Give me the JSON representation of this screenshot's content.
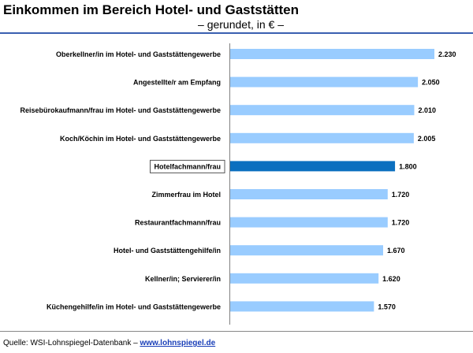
{
  "header": {
    "title": "Einkommen im Bereich Hotel- und Gaststätten",
    "subtitle": "– gerundet, in € –"
  },
  "footer": {
    "source_label": "Quelle: WSI-Lohnspiegel-Datenbank –",
    "link_text": "www.lohnspiegel.de"
  },
  "colors": {
    "bar": "#99ccff",
    "highlight_bar": "#0b6fbf",
    "rule": "#3a5fb0"
  },
  "chart_data": {
    "type": "bar",
    "orientation": "horizontal",
    "title": "Einkommen im Bereich Hotel- und Gaststätten",
    "subtitle": "– gerundet, in € –",
    "xlabel": "",
    "ylabel": "",
    "xlim": [
      0,
      2290
    ],
    "grid": false,
    "highlight": "Hotelfachmann/frau",
    "categories": [
      "Oberkellner/in im Hotel- und Gaststättengewerbe",
      "Angestellte/r am Empfang",
      "Reisebürokaufmann/frau im Hotel- und Gaststättengewerbe",
      "Koch/Köchin im Hotel- und Gaststättengewerbe",
      "Hotelfachmann/frau",
      "Zimmerfrau im Hotel",
      "Restaurantfachmann/frau",
      "Hotel- und Gaststättengehilfe/in",
      "Kellner/in; Servierer/in",
      "Küchengehilfe/in im Hotel- und Gaststättengewerbe"
    ],
    "values": [
      2230,
      2050,
      2010,
      2005,
      1800,
      1720,
      1720,
      1670,
      1620,
      1570
    ],
    "value_labels": [
      "2.230",
      "2.050",
      "2.010",
      "2.005",
      "1.800",
      "1.720",
      "1.720",
      "1.670",
      "1.620",
      "1.570"
    ]
  }
}
